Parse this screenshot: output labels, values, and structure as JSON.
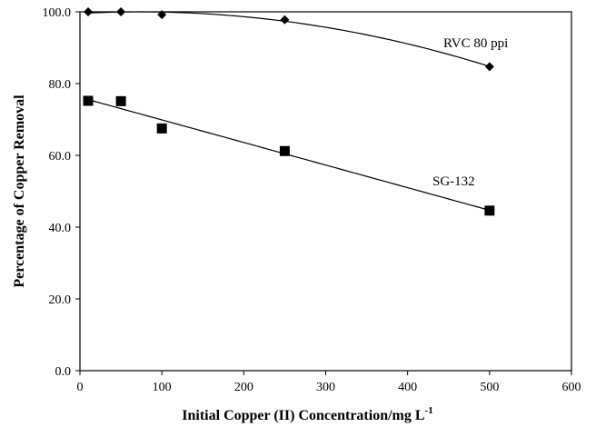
{
  "chart_data": {
    "type": "scatter",
    "title": "",
    "xlabel": "Initial Copper (II) Concentration/mg L",
    "xlabel_superscript": "-1",
    "ylabel": "Percentage of Copper Removal",
    "xlim": [
      0,
      600
    ],
    "ylim": [
      0,
      100
    ],
    "x_ticks": [
      "0",
      "100",
      "200",
      "300",
      "400",
      "500",
      "600"
    ],
    "y_ticks": [
      "0.0",
      "20.0",
      "40.0",
      "60.0",
      "80.0",
      "100.0"
    ],
    "grid": false,
    "series": [
      {
        "name": "RVC 80 ppi",
        "marker": "diamond",
        "color": "#000000",
        "x": [
          10,
          50,
          100,
          250,
          500
        ],
        "y": [
          100.0,
          100.0,
          99.2,
          97.8,
          84.7
        ],
        "trend": "polynomial"
      },
      {
        "name": "SG-132",
        "marker": "square",
        "color": "#000000",
        "x": [
          10,
          50,
          100,
          250,
          500
        ],
        "y": [
          75.2,
          75.1,
          67.5,
          61.2,
          44.6
        ],
        "trend": "linear"
      }
    ]
  }
}
